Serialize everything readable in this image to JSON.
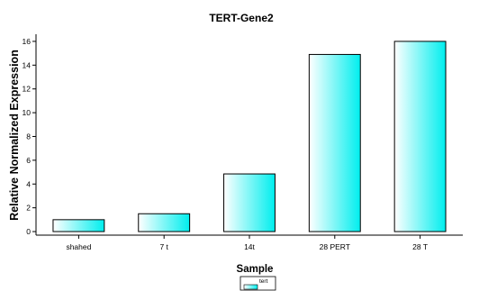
{
  "chart_data": {
    "type": "bar",
    "title": "TERT-Gene2",
    "xlabel": "Sample",
    "ylabel": "Relative Normalized Expression",
    "categories": [
      "shahed",
      "7 t",
      "14t",
      "28 PERT",
      "28 T"
    ],
    "series": [
      {
        "name": "tert",
        "values": [
          1.0,
          1.5,
          4.85,
          14.9,
          16.0
        ]
      }
    ],
    "ylim": [
      -0.3,
      16.6
    ],
    "yticks": [
      0,
      2,
      4,
      6,
      8,
      10,
      12,
      14,
      16
    ],
    "grid": false,
    "legend": "bottom-center",
    "colors": {
      "bar_start": "#ffffff",
      "bar_end": "#00eeee",
      "axis": "#000000"
    }
  }
}
